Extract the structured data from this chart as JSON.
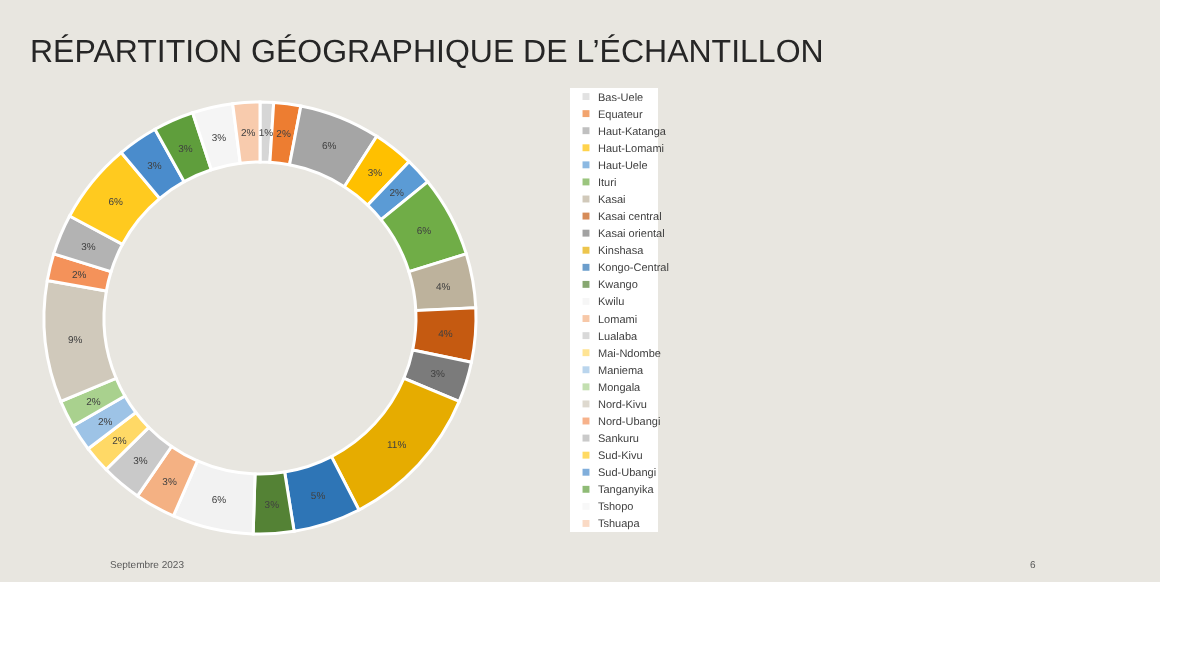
{
  "chart_data": {
    "type": "donut",
    "title": "RÉPARTITION GÉOGRAPHIQUE DE L’ÉCHANTILLON",
    "categories": [
      "Bas-Uele",
      "Equateur",
      "Haut-Katanga",
      "Haut-Lomami",
      "Haut-Uele",
      "Ituri",
      "Kasai",
      "Kasai central",
      "Kasai oriental",
      "Kinshasa",
      "Kongo-Central",
      "Kwango",
      "Kwilu",
      "Lomami",
      "Lualaba",
      "Mai-Ndombe",
      "Maniema",
      "Mongala",
      "Nord-Kivu",
      "Nord-Ubangi",
      "Sankuru",
      "Sud-Kivu",
      "Sud-Ubangi",
      "Tanganyika",
      "Tshopo",
      "Tshuapa"
    ],
    "values": [
      1,
      2,
      6,
      3,
      2,
      6,
      4,
      4,
      3,
      11,
      5,
      3,
      6,
      3,
      3,
      2,
      2,
      2,
      9,
      2,
      3,
      6,
      3,
      3,
      3,
      2
    ],
    "value_labels": [
      "1%",
      "2%",
      "6%",
      "3%",
      "2%",
      "6%",
      "4%",
      "4%",
      "3%",
      "11%",
      "5%",
      "3%",
      "6%",
      "3%",
      "3%",
      "2%",
      "2%",
      "2%",
      "9%",
      "2%",
      "3%",
      "6%",
      "3%",
      "3%",
      "3%",
      "2%"
    ],
    "colors": [
      "#d6d6d6",
      "#ed7d31",
      "#a5a5a5",
      "#ffc000",
      "#5b9bd5",
      "#70ad47",
      "#bdb29c",
      "#c55a11",
      "#7b7b7b",
      "#e6ac00",
      "#2e75b6",
      "#548235",
      "#f2f2f2",
      "#f4b183",
      "#c9c9c9",
      "#ffd966",
      "#9dc3e6",
      "#a9d18e",
      "#d0c9bb",
      "#f4925a",
      "#b3b3b3",
      "#ffca1f",
      "#4a8ccc",
      "#5f9e3c",
      "#f5f5f5",
      "#f8cbad"
    ],
    "legend": "right",
    "annotations": [
      "Septembre 2023",
      "6"
    ]
  }
}
